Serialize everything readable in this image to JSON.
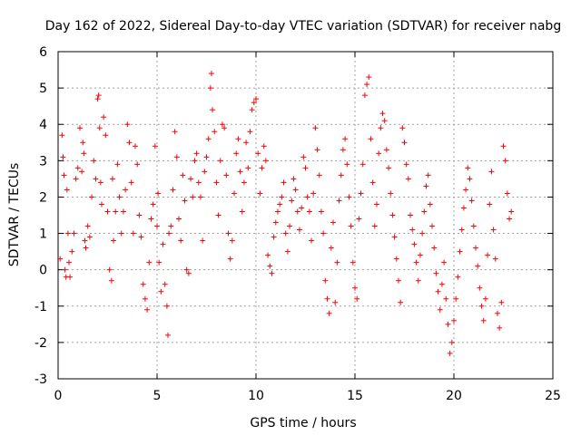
{
  "chart_data": {
    "type": "scatter",
    "title": "Day 162 of 2022, Sidereal Day-to-day VTEC variation (SDTVAR) for receiver nabg",
    "xlabel": "GPS time / hours",
    "ylabel": "SDTVAR / TECUs",
    "xlim": [
      0,
      25
    ],
    "ylim": [
      -3,
      6
    ],
    "xticks": [
      0,
      5,
      10,
      15,
      20,
      25
    ],
    "yticks": [
      -3,
      -2,
      -1,
      0,
      1,
      2,
      3,
      4,
      5,
      6
    ],
    "grid": true,
    "marker": "+",
    "color": "#ff0000",
    "series": [
      {
        "name": "SDTVAR",
        "x": [
          0.1,
          0.2,
          0.25,
          0.3,
          0.35,
          0.4,
          0.45,
          0.5,
          0.55,
          0.6,
          0.7,
          0.8,
          0.9,
          1.0,
          1.1,
          1.2,
          1.25,
          1.3,
          1.35,
          1.4,
          1.5,
          1.6,
          1.7,
          1.8,
          1.9,
          2.0,
          2.05,
          2.1,
          2.15,
          2.2,
          2.3,
          2.4,
          2.5,
          2.6,
          2.7,
          2.75,
          2.8,
          2.9,
          3.0,
          3.1,
          3.2,
          3.3,
          3.4,
          3.5,
          3.6,
          3.7,
          3.8,
          3.9,
          4.0,
          4.1,
          4.2,
          4.3,
          4.4,
          4.5,
          4.6,
          4.7,
          4.8,
          4.9,
          5.0,
          5.05,
          5.1,
          5.2,
          5.3,
          5.4,
          5.5,
          5.55,
          5.6,
          5.7,
          5.8,
          5.9,
          6.0,
          6.1,
          6.2,
          6.3,
          6.4,
          6.5,
          6.6,
          6.7,
          6.8,
          6.9,
          7.0,
          7.1,
          7.2,
          7.3,
          7.4,
          7.5,
          7.6,
          7.7,
          7.75,
          7.8,
          7.9,
          8.0,
          8.1,
          8.2,
          8.3,
          8.4,
          8.5,
          8.6,
          8.7,
          8.8,
          8.9,
          9.0,
          9.1,
          9.2,
          9.3,
          9.4,
          9.5,
          9.6,
          9.7,
          9.8,
          9.9,
          10.0,
          10.1,
          10.2,
          10.3,
          10.4,
          10.5,
          10.6,
          10.7,
          10.8,
          10.9,
          11.0,
          11.1,
          11.2,
          11.3,
          11.4,
          11.5,
          11.6,
          11.7,
          11.8,
          11.9,
          12.0,
          12.1,
          12.2,
          12.3,
          12.4,
          12.5,
          12.6,
          12.7,
          12.8,
          12.9,
          13.0,
          13.1,
          13.2,
          13.3,
          13.4,
          13.5,
          13.6,
          13.7,
          13.8,
          13.9,
          14.0,
          14.1,
          14.2,
          14.3,
          14.4,
          14.5,
          14.6,
          14.7,
          14.8,
          14.9,
          15.0,
          15.1,
          15.2,
          15.3,
          15.4,
          15.5,
          15.6,
          15.7,
          15.8,
          15.9,
          16.0,
          16.1,
          16.2,
          16.3,
          16.4,
          16.5,
          16.6,
          16.7,
          16.8,
          16.9,
          17.0,
          17.1,
          17.2,
          17.3,
          17.4,
          17.5,
          17.6,
          17.7,
          17.8,
          17.9,
          18.0,
          18.1,
          18.2,
          18.3,
          18.4,
          18.5,
          18.6,
          18.7,
          18.8,
          18.9,
          19.0,
          19.1,
          19.2,
          19.3,
          19.4,
          19.5,
          19.6,
          19.7,
          19.8,
          19.9,
          20.0,
          20.1,
          20.2,
          20.3,
          20.4,
          20.5,
          20.6,
          20.7,
          20.8,
          20.9,
          21.0,
          21.1,
          21.2,
          21.3,
          21.4,
          21.5,
          21.6,
          21.7,
          21.8,
          21.9,
          22.0,
          22.1,
          22.2,
          22.3,
          22.4,
          22.5,
          22.6,
          22.7,
          22.8,
          22.9
        ],
        "y": [
          0.3,
          3.7,
          3.1,
          2.6,
          0.0,
          -0.2,
          2.2,
          1.0,
          0.2,
          -0.2,
          0.5,
          1.0,
          2.5,
          2.8,
          3.9,
          2.7,
          3.5,
          3.2,
          0.8,
          0.6,
          1.2,
          0.9,
          2.0,
          3.0,
          2.5,
          4.7,
          4.8,
          3.9,
          2.4,
          1.8,
          4.2,
          3.7,
          1.6,
          0.0,
          -0.3,
          2.5,
          0.8,
          1.6,
          2.9,
          2.0,
          1.0,
          1.6,
          2.2,
          4.0,
          3.5,
          2.4,
          1.0,
          3.4,
          2.9,
          1.5,
          0.9,
          -0.4,
          -0.8,
          -1.1,
          0.2,
          1.4,
          1.8,
          3.4,
          1.2,
          2.1,
          0.2,
          -0.6,
          0.7,
          -0.4,
          -1.0,
          -1.8,
          1.0,
          1.2,
          2.2,
          3.8,
          3.1,
          1.4,
          0.8,
          2.6,
          1.9,
          0.0,
          -0.1,
          2.5,
          2.0,
          3.0,
          3.2,
          2.4,
          2.0,
          0.8,
          2.7,
          3.1,
          3.6,
          5.0,
          5.4,
          4.4,
          3.8,
          2.4,
          1.5,
          3.0,
          4.0,
          3.9,
          2.6,
          1.0,
          0.3,
          0.8,
          2.1,
          3.2,
          3.6,
          2.7,
          1.6,
          2.4,
          3.5,
          2.8,
          3.8,
          4.4,
          4.6,
          4.7,
          3.2,
          2.1,
          2.8,
          3.4,
          3.0,
          0.4,
          0.1,
          -0.1,
          0.9,
          1.3,
          1.6,
          1.8,
          2.0,
          2.4,
          1.0,
          0.5,
          1.2,
          1.9,
          2.5,
          2.2,
          1.6,
          1.1,
          1.7,
          3.1,
          2.8,
          2.0,
          1.6,
          0.8,
          2.1,
          3.9,
          3.3,
          2.6,
          1.6,
          1.0,
          -0.3,
          -0.8,
          -1.2,
          0.6,
          1.3,
          -0.9,
          0.2,
          1.9,
          2.6,
          3.3,
          3.6,
          2.9,
          2.0,
          1.2,
          0.2,
          -0.5,
          -0.8,
          1.4,
          2.1,
          2.9,
          4.8,
          5.1,
          5.3,
          3.6,
          2.4,
          1.2,
          1.8,
          3.2,
          3.9,
          4.3,
          4.1,
          3.3,
          2.8,
          2.1,
          1.5,
          0.9,
          0.3,
          -0.3,
          -0.9,
          3.9,
          3.5,
          2.9,
          2.5,
          1.5,
          1.1,
          0.7,
          0.2,
          -0.3,
          0.4,
          1.0,
          1.6,
          2.3,
          2.6,
          1.8,
          1.2,
          0.6,
          -0.1,
          -0.6,
          -1.1,
          -0.4,
          0.2,
          -0.8,
          -1.5,
          -2.3,
          -2.0,
          -1.4,
          -0.8,
          -0.2,
          0.5,
          1.1,
          1.7,
          2.2,
          2.8,
          2.5,
          1.9,
          1.2,
          0.6,
          0.1,
          -0.5,
          -1.0,
          -1.4,
          -0.8,
          0.4,
          1.8,
          2.7,
          1.1,
          0.3,
          -1.2,
          -1.6,
          -0.9,
          3.4,
          3.0,
          2.1,
          1.4,
          1.6
        ]
      }
    ]
  }
}
